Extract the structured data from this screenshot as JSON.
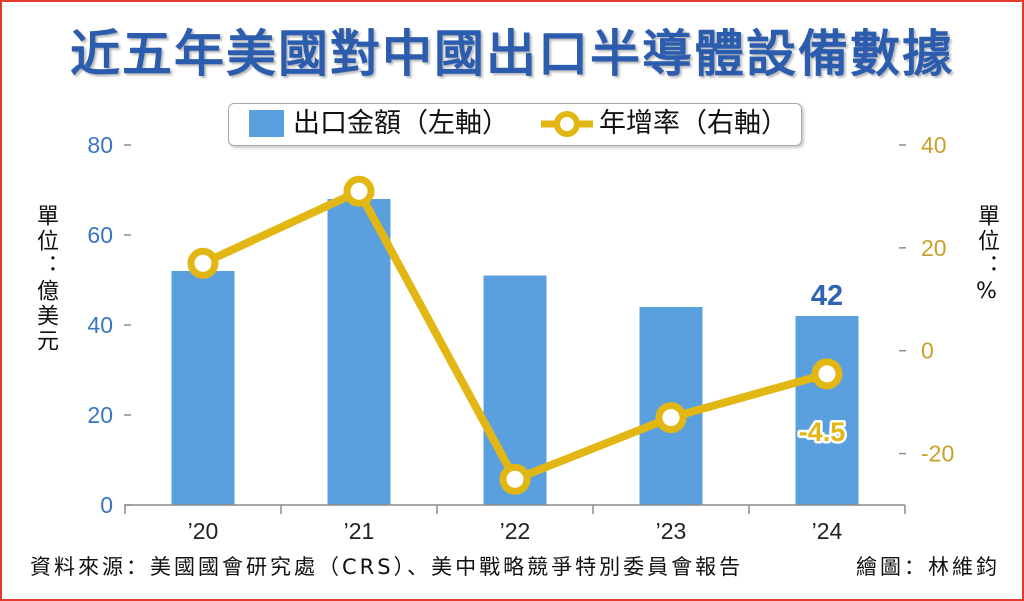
{
  "chart_data": {
    "type": "bar",
    "title": "近五年美國對中國出口半導體設備數據",
    "categories": [
      "’20",
      "’21",
      "’22",
      "’23",
      "’24"
    ],
    "series": [
      {
        "name": "出口金額（左軸）",
        "type": "bar",
        "values": [
          52,
          68,
          51,
          44,
          42
        ]
      },
      {
        "name": "年增率（右軸）",
        "type": "line",
        "values": [
          17,
          31,
          -25,
          -13,
          -4.5
        ]
      }
    ],
    "y_left": {
      "label": "單位：億美元",
      "lim": [
        0,
        80
      ],
      "ticks": [
        0,
        20,
        40,
        60,
        80
      ]
    },
    "y_right": {
      "label": "單位：%",
      "lim": [
        -30,
        40
      ],
      "ticks": [
        -20,
        0,
        20,
        40
      ]
    },
    "data_labels": [
      {
        "series": 0,
        "index": 4,
        "text": "42"
      },
      {
        "series": 1,
        "index": 4,
        "text": "-4.5"
      }
    ],
    "legend": "top-center",
    "grid": false,
    "source_note": "資料來源：美國國會研究處（CRS）、美中戰略競爭特別委員會報告",
    "credit": "繪圖：林維鈞"
  },
  "colors": {
    "bar": "#5aa0de",
    "line": "#e2b714",
    "title": "#2b5cae",
    "left_axis_text": "#3876c0",
    "right_axis_text": "#c8a02a",
    "bar_label": "#2f63b3",
    "axis": "#8c8c8c",
    "frame": "#e23b2e"
  }
}
